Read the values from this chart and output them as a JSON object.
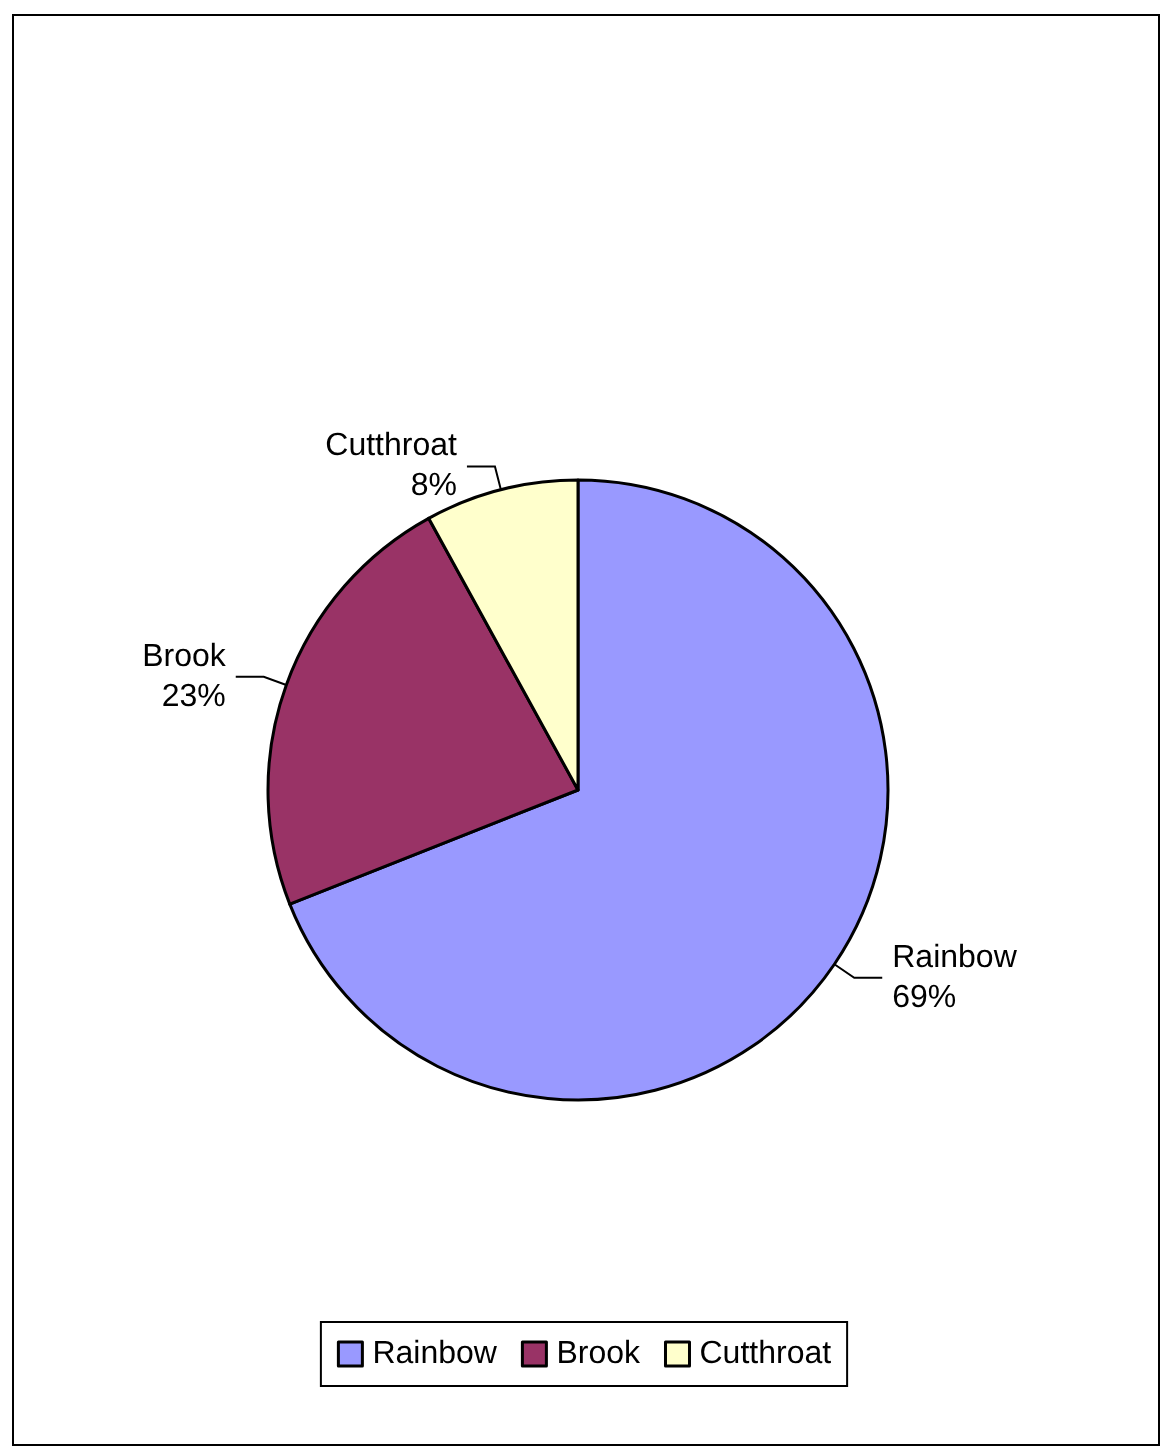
{
  "chart_data": {
    "type": "pie",
    "categories": [
      "Rainbow",
      "Brook",
      "Cutthroat"
    ],
    "values": [
      69,
      23,
      8
    ],
    "colors": [
      "#9999ff",
      "#993366",
      "#ffffcc"
    ],
    "value_labels": [
      "69%",
      "23%",
      "8%"
    ],
    "legend": "bottom"
  }
}
